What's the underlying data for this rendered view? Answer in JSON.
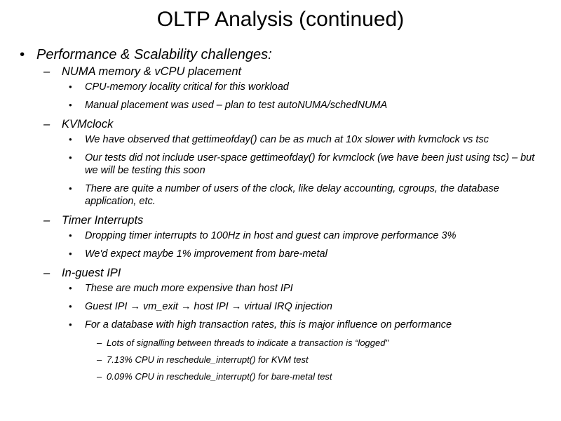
{
  "slide": {
    "title": "OLTP Analysis (continued)",
    "colors": {
      "background": "#ffffff",
      "text": "#000000"
    },
    "bullets": [
      {
        "level": 1,
        "marker": "•",
        "text": "Performance & Scalability challenges:"
      },
      {
        "level": 2,
        "marker": "–",
        "text": "NUMA memory & vCPU placement"
      },
      {
        "level": 3,
        "marker": "•",
        "text": "CPU-memory locality critical for this workload"
      },
      {
        "level": 3,
        "marker": "•",
        "text": "Manual placement was used – plan to test autoNUMA/schedNUMA"
      },
      {
        "level": 2,
        "marker": "–",
        "text": "KVMclock"
      },
      {
        "level": 3,
        "marker": "•",
        "text": "We have observed that gettimeofday() can be as much at 10x slower with kvmclock vs tsc"
      },
      {
        "level": 3,
        "marker": "•",
        "text": "Our tests did not include user-space gettimeofday() for kvmclock (we have been just using tsc) – but we will be testing this soon"
      },
      {
        "level": 3,
        "marker": "•",
        "text": "There are quite a number of users of the clock, like delay accounting, cgroups, the database application, etc."
      },
      {
        "level": 2,
        "marker": "–",
        "text": "Timer Interrupts"
      },
      {
        "level": 3,
        "marker": "•",
        "text": "Dropping timer interrupts to 100Hz in host and guest can improve performance 3%"
      },
      {
        "level": 3,
        "marker": "•",
        "text": "We'd expect maybe 1% improvement from bare-metal"
      },
      {
        "level": 2,
        "marker": "–",
        "text": "In-guest IPI"
      },
      {
        "level": 3,
        "marker": "•",
        "text": "These are much more expensive than host IPI"
      },
      {
        "level": 3,
        "marker": "•",
        "text": "Guest IPI → vm_exit → host IPI → virtual IRQ injection"
      },
      {
        "level": 3,
        "marker": "•",
        "text": "For a database with high transaction rates, this is major influence on performance"
      },
      {
        "level": 4,
        "marker": "–",
        "text": "Lots of signalling between threads to indicate a transaction is “logged\""
      },
      {
        "level": 4,
        "marker": "–",
        "text": "7.13% CPU in reschedule_interrupt() for KVM test"
      },
      {
        "level": 4,
        "marker": "–",
        "text": "0.09% CPU in reschedule_interrupt() for bare-metal test"
      }
    ]
  }
}
